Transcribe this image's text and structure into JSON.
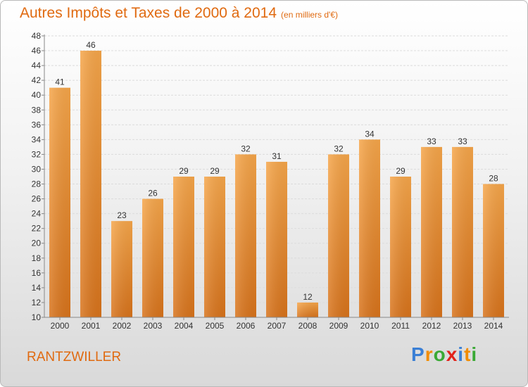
{
  "header": {
    "title": "Autres Impôts et Taxes de 2000 à 2014",
    "subtitle": "(en milliers d'€)"
  },
  "footer": {
    "city": "RANTZWILLER",
    "logo_letters": [
      "P",
      "r",
      "o",
      "x",
      "i",
      "t",
      "i"
    ],
    "logo_colors": [
      "#3a7fd5",
      "#f28c00",
      "#3aa935",
      "#e2231a",
      "#3a7fd5",
      "#f28c00",
      "#3aa935"
    ]
  },
  "colors": {
    "bar_top": "#f6a64a",
    "bar_bottom": "#d8731b",
    "title": "#e06a10"
  },
  "chart_data": {
    "type": "bar",
    "title": "Autres Impôts et Taxes de 2000 à 2014",
    "subtitle": "(en milliers d'€)",
    "categories": [
      "2000",
      "2001",
      "2002",
      "2003",
      "2004",
      "2005",
      "2006",
      "2007",
      "2008",
      "2009",
      "2010",
      "2011",
      "2012",
      "2013",
      "2014"
    ],
    "values": [
      41,
      46,
      23,
      26,
      29,
      29,
      32,
      31,
      12,
      32,
      34,
      29,
      33,
      33,
      28
    ],
    "ylim": [
      10,
      48
    ],
    "yticks": [
      10,
      12,
      14,
      16,
      18,
      20,
      22,
      24,
      26,
      28,
      30,
      32,
      34,
      36,
      38,
      40,
      42,
      44,
      46,
      48
    ],
    "grid": true,
    "xlabel": "",
    "ylabel": ""
  }
}
